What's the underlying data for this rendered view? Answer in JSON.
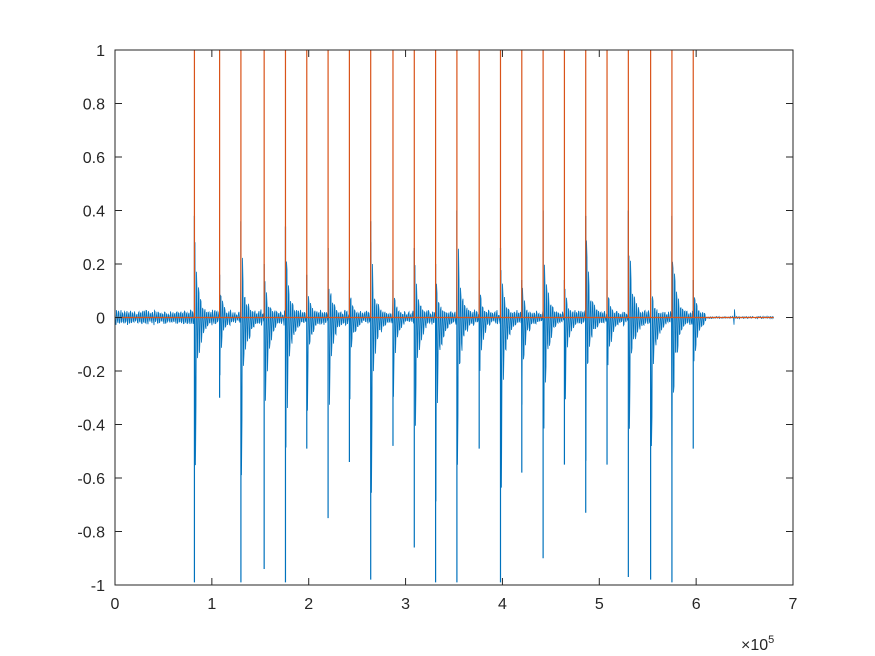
{
  "chart_data": {
    "type": "line",
    "title": "",
    "xlabel": "",
    "ylabel": "",
    "xlim": [
      0,
      700000
    ],
    "ylim": [
      -1,
      1
    ],
    "x_exponent_label": "×10",
    "x_exponent_power": "5",
    "x_ticks": [
      0,
      100000,
      200000,
      300000,
      400000,
      500000,
      600000,
      700000
    ],
    "x_tick_labels": [
      "0",
      "1",
      "2",
      "3",
      "4",
      "5",
      "6",
      "7"
    ],
    "y_ticks": [
      -1,
      -0.8,
      -0.6,
      -0.4,
      -0.2,
      0,
      0.2,
      0.4,
      0.6,
      0.8,
      1
    ],
    "y_tick_labels": [
      "-1",
      "-0.8",
      "-0.6",
      "-0.4",
      "-0.2",
      "0",
      "0.2",
      "0.4",
      "0.6",
      "0.8",
      "1"
    ],
    "grid": false,
    "legend": "none",
    "signal_end": 680000,
    "series": [
      {
        "color": "#0072BD",
        "kind": "decaying-waveform",
        "events": [
          {
            "x": 82000,
            "peak_pos": 0.38,
            "peak_neg": -0.99
          },
          {
            "x": 108000,
            "peak_pos": 0.16,
            "peak_neg": -0.3
          },
          {
            "x": 130000,
            "peak_pos": 0.36,
            "peak_neg": -0.99
          },
          {
            "x": 154000,
            "peak_pos": 0.2,
            "peak_neg": -0.94
          },
          {
            "x": 176000,
            "peak_pos": 0.34,
            "peak_neg": -0.99
          },
          {
            "x": 198000,
            "peak_pos": 0.16,
            "peak_neg": -0.49
          },
          {
            "x": 220000,
            "peak_pos": 0.26,
            "peak_neg": -0.75
          },
          {
            "x": 242000,
            "peak_pos": 0.14,
            "peak_neg": -0.54
          },
          {
            "x": 264000,
            "peak_pos": 0.36,
            "peak_neg": -0.98
          },
          {
            "x": 287000,
            "peak_pos": 0.14,
            "peak_neg": -0.48
          },
          {
            "x": 309000,
            "peak_pos": 0.26,
            "peak_neg": -0.86
          },
          {
            "x": 331000,
            "peak_pos": 0.2,
            "peak_neg": -0.99
          },
          {
            "x": 353000,
            "peak_pos": 0.4,
            "peak_neg": -0.99
          },
          {
            "x": 376000,
            "peak_pos": 0.14,
            "peak_neg": -0.49
          },
          {
            "x": 398000,
            "peak_pos": 0.26,
            "peak_neg": -0.99
          },
          {
            "x": 420000,
            "peak_pos": 0.14,
            "peak_neg": -0.58
          },
          {
            "x": 442000,
            "peak_pos": 0.4,
            "peak_neg": -0.9
          },
          {
            "x": 464000,
            "peak_pos": 0.14,
            "peak_neg": -0.55
          },
          {
            "x": 486000,
            "peak_pos": 0.38,
            "peak_neg": -0.73
          },
          {
            "x": 508000,
            "peak_pos": 0.14,
            "peak_neg": -0.55
          },
          {
            "x": 530000,
            "peak_pos": 0.4,
            "peak_neg": -0.97
          },
          {
            "x": 553000,
            "peak_pos": 0.14,
            "peak_neg": -0.98
          },
          {
            "x": 575000,
            "peak_pos": 0.38,
            "peak_neg": -0.99
          },
          {
            "x": 597000,
            "peak_pos": 0.14,
            "peak_neg": -0.49
          }
        ]
      },
      {
        "color": "#D95319",
        "kind": "impulses",
        "baseline": 0,
        "impulse_height": 1,
        "x": [
          82000,
          108000,
          130000,
          154000,
          176000,
          198000,
          220000,
          242000,
          264000,
          287000,
          309000,
          331000,
          353000,
          376000,
          398000,
          420000,
          442000,
          464000,
          486000,
          508000,
          530000,
          553000,
          575000,
          597000
        ]
      }
    ]
  }
}
